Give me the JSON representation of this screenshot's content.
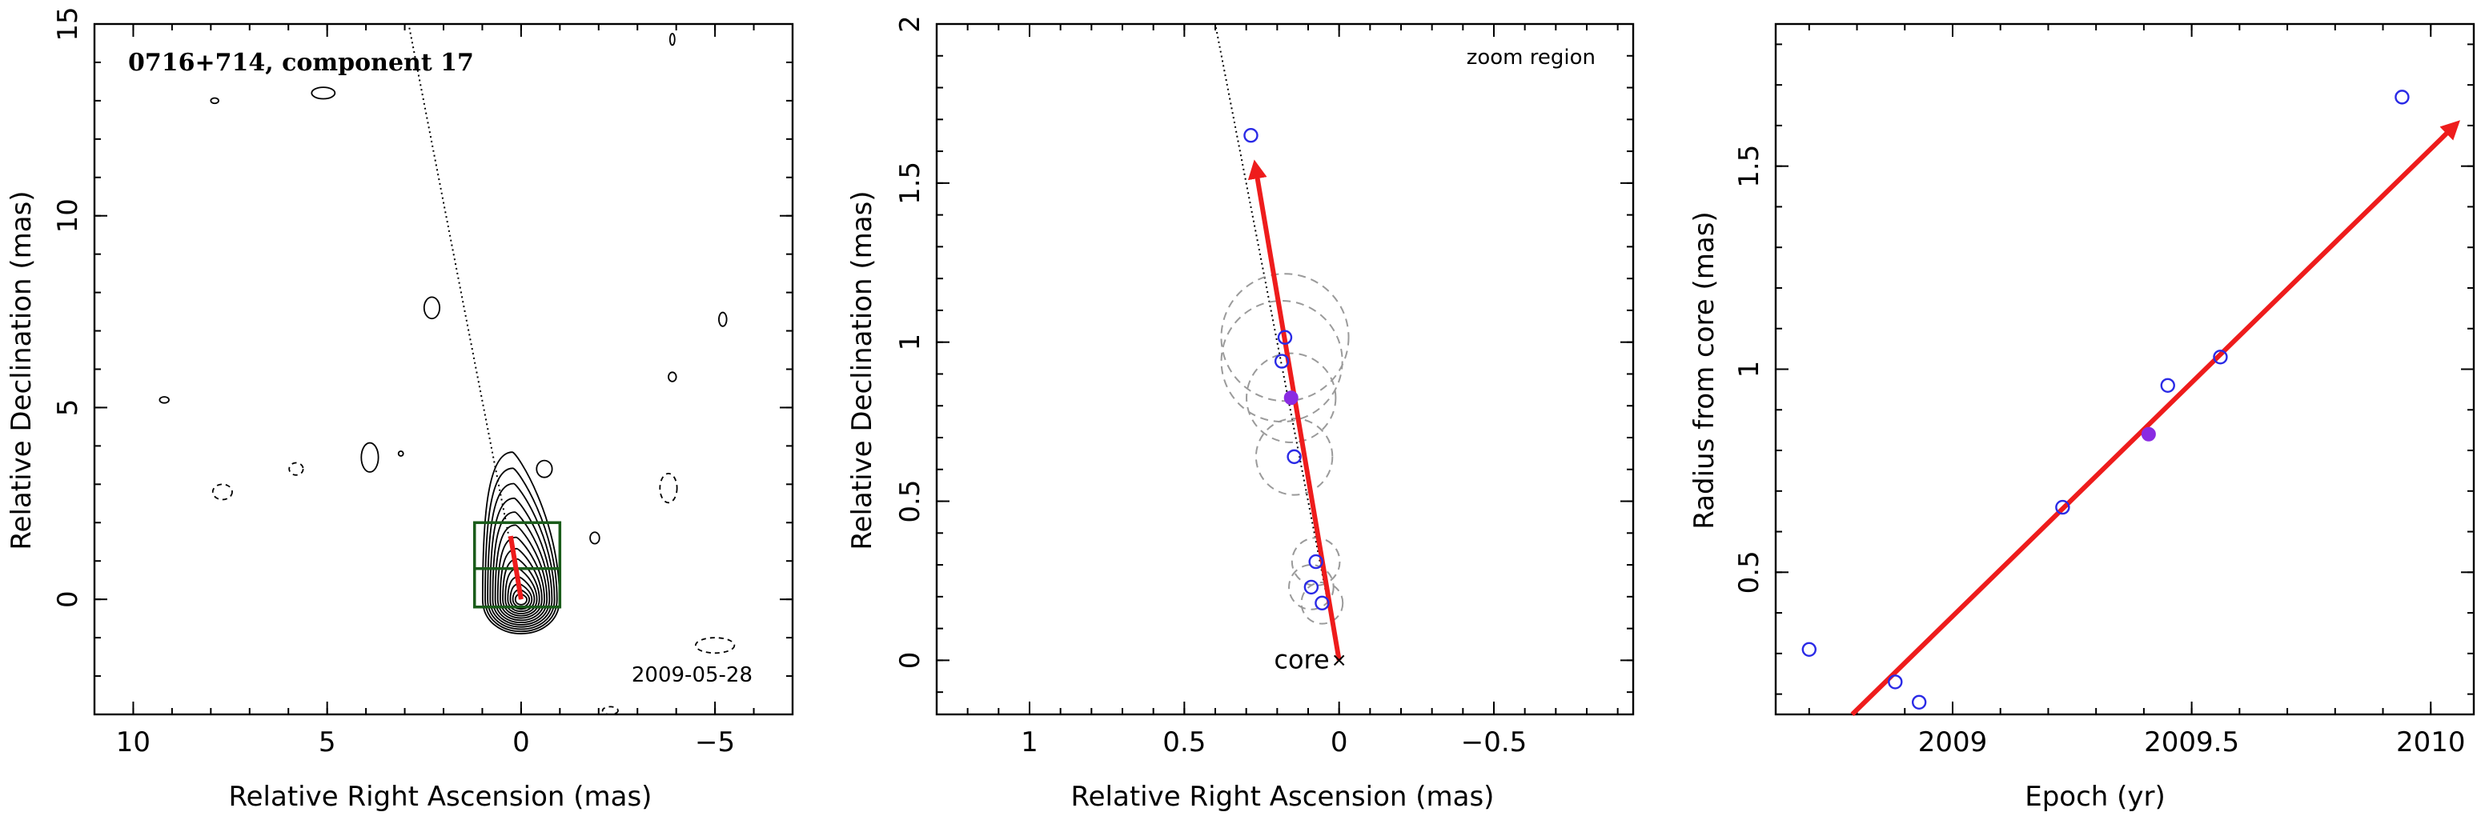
{
  "colors": {
    "motion_vector": "#ee1c1c",
    "open_points": "#2a2ae6",
    "filled_point": "#8a2be2",
    "zoom_box": "#1a5c1a",
    "gaussian_circles": "#9a9a9a"
  },
  "chart_data": [
    {
      "type": "contour",
      "title": "0716+714, component 17",
      "annotation_date": "2009-05-28",
      "xlabel": "Relative Right Ascension (mas)",
      "ylabel": "Relative Declination (mas)",
      "xlim": [
        11,
        -7
      ],
      "ylim": [
        -3,
        15
      ],
      "xticks": [
        10,
        5,
        0,
        -5
      ],
      "xtick_labels": [
        "10",
        "5",
        "0",
        "−5"
      ],
      "yticks": [
        0,
        5,
        10,
        15
      ],
      "ytick_labels": [
        "0",
        "5",
        "10",
        "15"
      ],
      "core": {
        "x": 0,
        "y": 0
      },
      "zoom_box": {
        "x": [
          -1,
          1.2
        ],
        "y": [
          -0.2,
          2.0
        ]
      },
      "jet_direction_line": {
        "from": [
          0,
          0
        ],
        "to": [
          2.9,
          15
        ]
      },
      "motion_vector": {
        "from": [
          0,
          0
        ],
        "to": [
          0.27,
          1.65
        ]
      },
      "compact_contours": [
        {
          "x": 7.9,
          "y": 13.0,
          "rx": 0.1,
          "ry": 0.07,
          "sign": "pos"
        },
        {
          "x": 5.1,
          "y": 13.2,
          "rx": 0.3,
          "ry": 0.15,
          "sign": "pos"
        },
        {
          "x": 9.2,
          "y": 5.2,
          "rx": 0.12,
          "ry": 0.08,
          "sign": "pos"
        },
        {
          "x": 2.3,
          "y": 7.6,
          "rx": 0.2,
          "ry": 0.28,
          "sign": "pos"
        },
        {
          "x": 3.9,
          "y": 3.7,
          "rx": 0.22,
          "ry": 0.38,
          "sign": "pos"
        },
        {
          "x": 3.1,
          "y": 3.8,
          "rx": 0.05,
          "ry": 0.05,
          "sign": "pos"
        },
        {
          "x": 5.8,
          "y": 3.4,
          "rx": 0.18,
          "ry": 0.16,
          "sign": "neg"
        },
        {
          "x": 7.7,
          "y": 2.8,
          "rx": 0.25,
          "ry": 0.2,
          "sign": "neg"
        },
        {
          "x": -0.6,
          "y": 3.4,
          "rx": 0.2,
          "ry": 0.22,
          "sign": "pos"
        },
        {
          "x": -1.9,
          "y": 1.6,
          "rx": 0.12,
          "ry": 0.15,
          "sign": "pos"
        },
        {
          "x": -3.8,
          "y": 2.9,
          "rx": 0.22,
          "ry": 0.38,
          "sign": "neg"
        },
        {
          "x": -3.9,
          "y": 5.8,
          "rx": 0.1,
          "ry": 0.12,
          "sign": "pos"
        },
        {
          "x": -5.2,
          "y": 7.3,
          "rx": 0.1,
          "ry": 0.18,
          "sign": "pos"
        },
        {
          "x": -3.9,
          "y": 14.6,
          "rx": 0.06,
          "ry": 0.15,
          "sign": "pos"
        },
        {
          "x": -5.0,
          "y": -1.2,
          "rx": 0.5,
          "ry": 0.2,
          "sign": "neg"
        },
        {
          "x": -2.3,
          "y": -2.9,
          "rx": 0.2,
          "ry": 0.1,
          "sign": "neg"
        }
      ]
    },
    {
      "type": "scatter",
      "title": "zoom region",
      "xlabel": "Relative Right Ascension (mas)",
      "ylabel": "Relative Declination (mas)",
      "xlim": [
        1.3,
        -0.95
      ],
      "ylim": [
        -0.17,
        2.0
      ],
      "xticks": [
        1,
        0.5,
        0,
        -0.5
      ],
      "xtick_labels": [
        "1",
        "0.5",
        "0",
        "−0.5"
      ],
      "yticks": [
        0,
        0.5,
        1,
        1.5,
        2
      ],
      "ytick_labels": [
        "0",
        "0.5",
        "1",
        "1.5",
        "2"
      ],
      "core_label": "core",
      "core": {
        "x": 0,
        "y": 0
      },
      "jet_direction_line": {
        "from": [
          0,
          0
        ],
        "to": [
          0.4,
          2.0
        ]
      },
      "motion_vector": {
        "from": [
          0,
          0
        ],
        "to": [
          0.27,
          1.55
        ]
      },
      "points": [
        {
          "x": 0.285,
          "y": 1.65,
          "filled": false
        },
        {
          "x": 0.175,
          "y": 1.015,
          "filled": false
        },
        {
          "x": 0.185,
          "y": 0.94,
          "filled": false
        },
        {
          "x": 0.155,
          "y": 0.825,
          "filled": true
        },
        {
          "x": 0.145,
          "y": 0.64,
          "filled": false
        },
        {
          "x": 0.075,
          "y": 0.31,
          "filled": false
        },
        {
          "x": 0.09,
          "y": 0.23,
          "filled": false
        },
        {
          "x": 0.055,
          "y": 0.18,
          "filled": false
        }
      ],
      "gaussian_sizes": [
        {
          "x": 0.175,
          "y": 1.015,
          "r": 0.2
        },
        {
          "x": 0.185,
          "y": 0.94,
          "r": 0.19
        },
        {
          "x": 0.155,
          "y": 0.825,
          "r": 0.14
        },
        {
          "x": 0.145,
          "y": 0.64,
          "r": 0.12
        },
        {
          "x": 0.075,
          "y": 0.31,
          "r": 0.075
        },
        {
          "x": 0.09,
          "y": 0.23,
          "r": 0.07
        },
        {
          "x": 0.055,
          "y": 0.18,
          "r": 0.065
        }
      ]
    },
    {
      "type": "scatter",
      "xlabel": "Epoch (yr)",
      "ylabel": "Radius from core (mas)",
      "xlim": [
        2008.63,
        2010.09
      ],
      "ylim": [
        0.15,
        1.85
      ],
      "xticks": [
        2009,
        2009.5,
        2010
      ],
      "xtick_labels": [
        "2009",
        "2009.5",
        "2010"
      ],
      "yticks": [
        0.5,
        1,
        1.5
      ],
      "ytick_labels": [
        "0.5",
        "1",
        "1.5"
      ],
      "points": [
        {
          "x": 2008.7,
          "y": 0.31,
          "filled": false
        },
        {
          "x": 2008.88,
          "y": 0.23,
          "filled": false
        },
        {
          "x": 2008.93,
          "y": 0.18,
          "filled": false
        },
        {
          "x": 2009.23,
          "y": 0.66,
          "filled": false
        },
        {
          "x": 2009.41,
          "y": 0.84,
          "filled": true
        },
        {
          "x": 2009.45,
          "y": 0.96,
          "filled": false
        },
        {
          "x": 2009.56,
          "y": 1.03,
          "filled": false
        },
        {
          "x": 2009.94,
          "y": 1.67,
          "filled": false
        }
      ],
      "fit_vector": {
        "from": [
          2008.79,
          0.15
        ],
        "to": [
          2010.05,
          1.6
        ]
      }
    }
  ]
}
